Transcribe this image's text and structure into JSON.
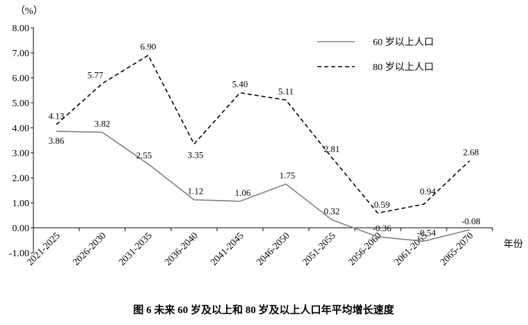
{
  "chart_data": {
    "type": "line",
    "title": "图 6 未来 60 岁及以上和 80 岁及以上人口年平均增长速度",
    "unit_label": "（%）",
    "xlabel": "年份",
    "ylabel": "",
    "ylim": [
      -1,
      8
    ],
    "yticks": [
      "-1.00",
      "0.00",
      "1.00",
      "2.00",
      "3.00",
      "4.00",
      "5.00",
      "6.00",
      "7.00",
      "8.00"
    ],
    "categories": [
      "2021-2025",
      "2026-2030",
      "2031-2035",
      "2036-2040",
      "2041-2045",
      "2046-2050",
      "2051-2055",
      "2056-2060",
      "2061-2065",
      "2065-2070"
    ],
    "grid": false,
    "legend_position": "top-right",
    "series": [
      {
        "name": "60 岁以上人口",
        "style": "solid",
        "color": "#808080",
        "values": [
          3.86,
          3.82,
          2.55,
          1.12,
          1.06,
          1.75,
          0.32,
          -0.36,
          -0.54,
          -0.08
        ],
        "labels": [
          "3.86",
          "3.82",
          "2.55",
          "1.12",
          "1.06",
          "1.75",
          "0.32",
          "-0.36",
          "-0.54",
          "-0.08"
        ]
      },
      {
        "name": "80 岁以上人口",
        "style": "dashed",
        "color": "#000000",
        "values": [
          4.13,
          5.77,
          6.9,
          3.35,
          5.4,
          5.11,
          2.81,
          0.59,
          0.94,
          2.68
        ],
        "labels": [
          "4.13",
          "5.77",
          "6.90",
          "3.35",
          "5.40",
          "5.11",
          "2.81",
          "0.59",
          "0.94",
          "2.68"
        ]
      }
    ]
  }
}
